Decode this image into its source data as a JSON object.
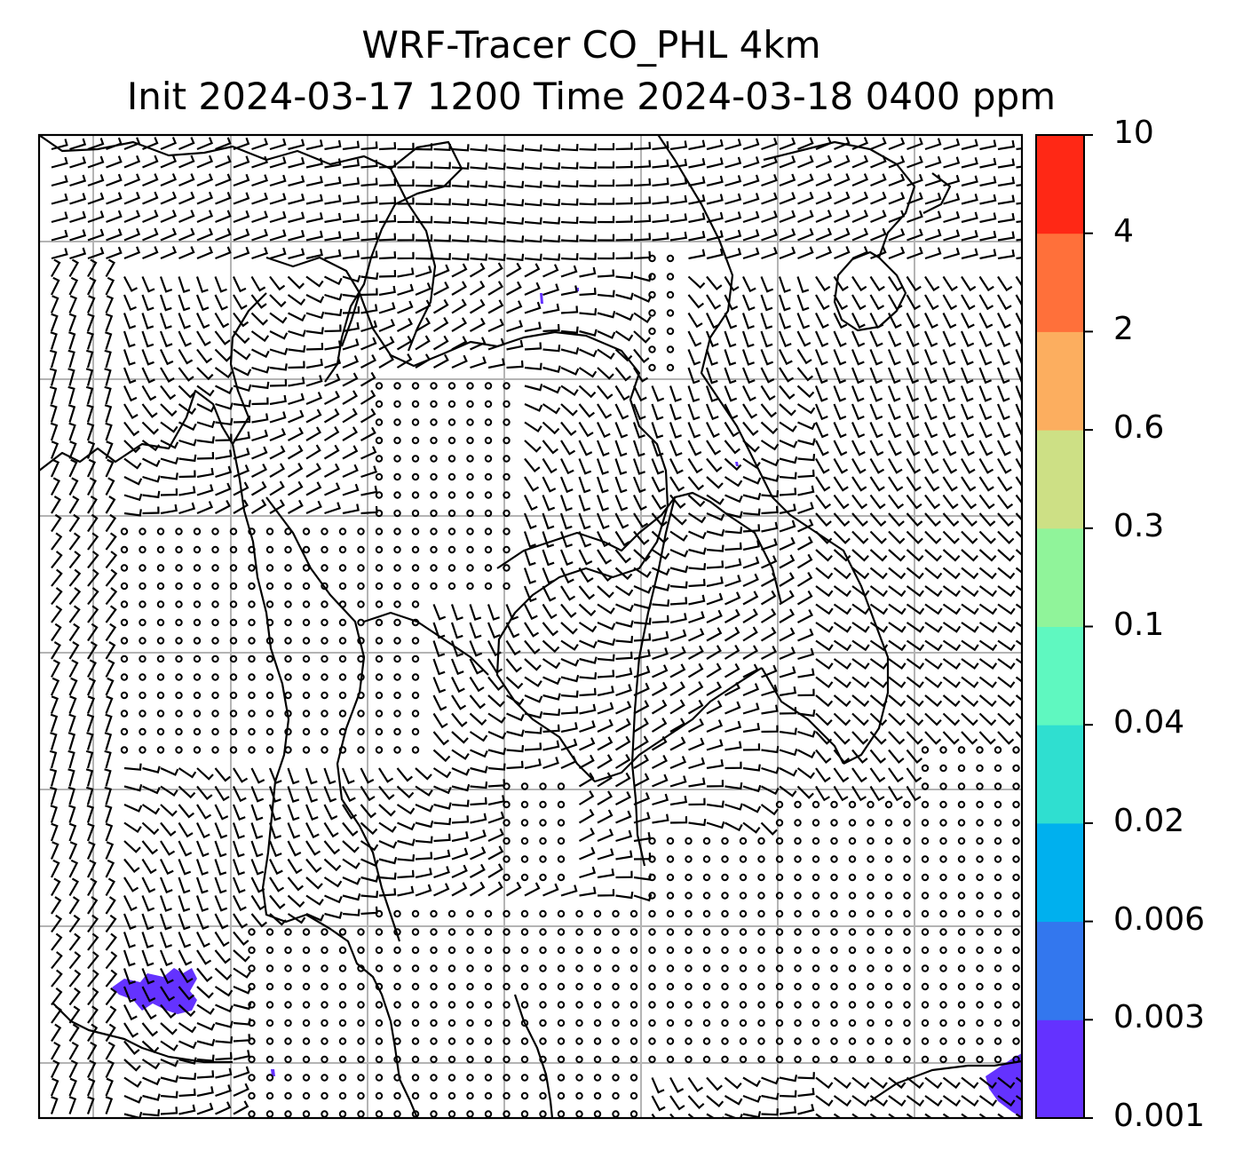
{
  "title": {
    "line1": "WRF-Tracer CO_PHL 4km",
    "line2": "Init 2024-03-17 1200 Time 2024-03-18 0400 ppm"
  },
  "colorbar": {
    "levels": [
      "0.001",
      "0.003",
      "0.006",
      "0.02",
      "0.04",
      "0.1",
      "0.3",
      "0.6",
      "2",
      "4",
      "10"
    ],
    "colors": [
      "#6432ff",
      "#3377ee",
      "#00b0ee",
      "#2fdfd0",
      "#5ff8c0",
      "#90f49a",
      "#cde085",
      "#fcae5f",
      "#ff703a",
      "#ff2815"
    ]
  },
  "map": {
    "gridlines": true,
    "overlay": "wind barbs",
    "background": "#ffffff",
    "coastline_color": "#000000",
    "tracer_color": "#6432ff"
  }
}
